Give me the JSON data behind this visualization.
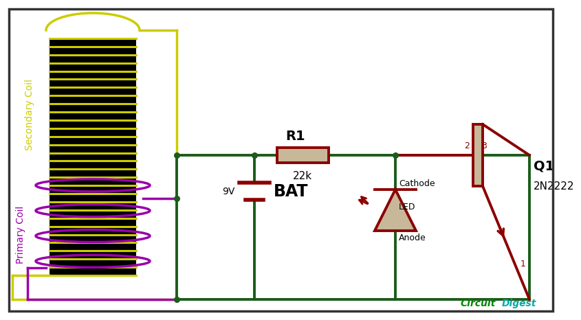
{
  "bg_color": "#ffffff",
  "border_color": "#333333",
  "wire_color": "#1a5c1a",
  "comp_color": "#8b0000",
  "sec_coil_color": "#cccc00",
  "pri_coil_color": "#9900aa",
  "coil_body": "#000000",
  "res_fill": "#c8b89a",
  "dot_color": "#1a5c1a",
  "text_color": "#000000",
  "pin_color": "#8b0000",
  "cd_color_circuit": "#008800",
  "cd_color_digest": "#00aaaa",
  "r1_label": "R1",
  "r1_val": "22k",
  "bat_label": "BAT",
  "bat_v": "9V",
  "q1_label": "Q1",
  "q1_model": "2N2222",
  "led_label": "LED",
  "cathode": "Cathode",
  "anode": "Anode",
  "sec_label": "Secondary Coil",
  "pri_label": "Primary Coil",
  "cd_label": "CircuitDigest",
  "p1": "1",
  "p2": "2",
  "p3": "3"
}
